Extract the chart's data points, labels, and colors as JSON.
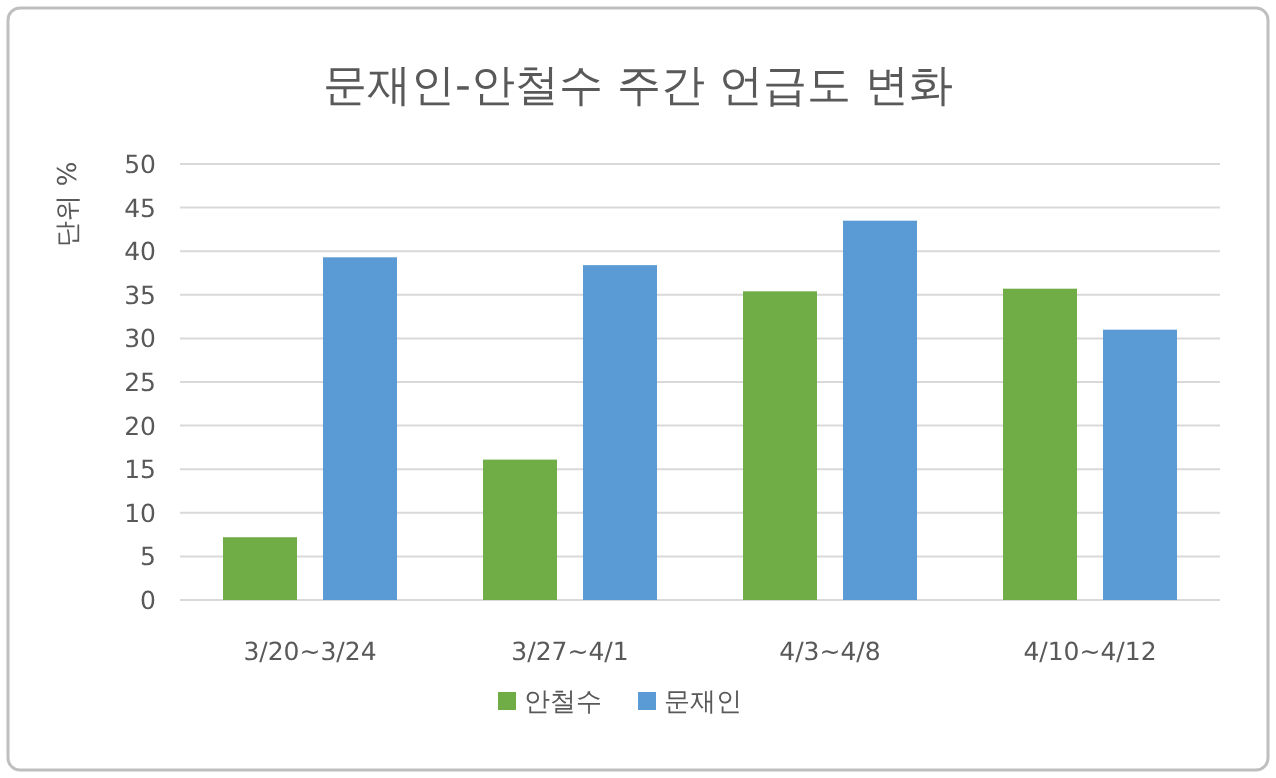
{
  "chart_data": {
    "type": "bar",
    "title": "문재인-안철수 주간 언급도 변화",
    "ylabel": "단위 %",
    "categories": [
      "3/20~3/24",
      "3/27~4/1",
      "4/3~4/8",
      "4/10~4/12"
    ],
    "series": [
      {
        "name": "안철수",
        "color": "#70ad47",
        "values": [
          7.2,
          16.1,
          35.4,
          35.7
        ]
      },
      {
        "name": "문재인",
        "color": "#5b9bd5",
        "values": [
          39.3,
          38.4,
          43.5,
          31.0
        ]
      }
    ],
    "ylim": [
      0,
      50
    ],
    "yticks": [
      0,
      5,
      10,
      15,
      20,
      25,
      30,
      35,
      40,
      45,
      50
    ],
    "grid": "y",
    "legend": "bottom"
  }
}
